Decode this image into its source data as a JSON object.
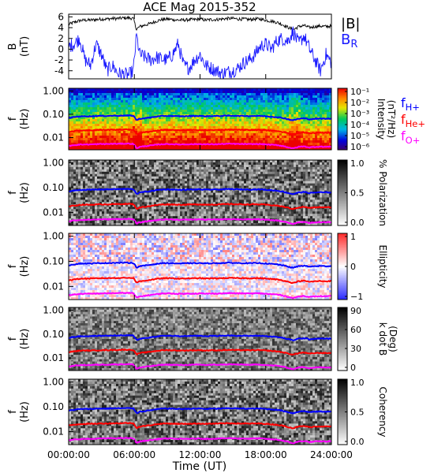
{
  "chart_data": {
    "type": "line",
    "title": "ACE Mag 2015-352",
    "xlabel": "Time (UT)",
    "x_ticks": [
      "00:00:00",
      "06:00:00",
      "12:00:00",
      "18:00:00",
      "24:00:00"
    ],
    "x_range_hours": [
      0,
      24
    ],
    "panels": [
      {
        "kind": "timeseries",
        "ylabel": "B",
        "yunit": "(nT)",
        "ylim": [
          -5.5,
          6.5
        ],
        "y_ticks": [
          6,
          4,
          2,
          0,
          -2,
          -4
        ],
        "series": [
          {
            "name": "|B|",
            "color": "#000000",
            "x": [
              0,
              0.5,
              1,
              1.5,
              2,
              2.5,
              3,
              3.5,
              4,
              4.5,
              5,
              5.5,
              5.9,
              6.2,
              6.5,
              7,
              7.5,
              8,
              8.5,
              9,
              9.5,
              10,
              10.5,
              11,
              11.5,
              12,
              12.5,
              13,
              13.5,
              14,
              14.5,
              15,
              15.5,
              16,
              16.5,
              17,
              17.5,
              18,
              18.5,
              19,
              19.5,
              20,
              20.5,
              21,
              21.5,
              22,
              22.5,
              23,
              23.5,
              24
            ],
            "y": [
              4.6,
              5.0,
              5.3,
              5.4,
              5.4,
              5.5,
              5.6,
              5.6,
              5.7,
              5.7,
              5.8,
              5.8,
              5.7,
              3.7,
              4.2,
              4.5,
              4.8,
              5.2,
              5.5,
              5.6,
              5.5,
              5.4,
              5.4,
              5.5,
              5.5,
              5.6,
              5.4,
              5.5,
              5.5,
              5.6,
              5.7,
              5.7,
              5.6,
              5.6,
              5.5,
              5.6,
              5.6,
              5.4,
              5.2,
              5.0,
              4.6,
              4.1,
              3.6,
              4.2,
              4.4,
              4.0,
              4.2,
              4.3,
              4.2,
              4.3
            ]
          },
          {
            "name": "B",
            "subscript": "R",
            "color": "#1a1aff",
            "x": [
              0,
              0.5,
              1,
              1.5,
              2,
              2.5,
              3,
              3.5,
              4,
              4.5,
              5,
              5.5,
              5.9,
              6.2,
              6.5,
              7,
              7.5,
              8,
              8.5,
              9,
              9.5,
              10,
              10.5,
              11,
              11.5,
              12,
              12.5,
              13,
              13.5,
              14,
              14.5,
              15,
              15.5,
              16,
              16.5,
              17,
              17.5,
              18,
              18.5,
              19,
              19.5,
              20,
              20.5,
              21,
              21.5,
              22,
              22.5,
              23,
              23.5,
              24
            ],
            "y": [
              0.5,
              1.0,
              2.0,
              -2.0,
              -3.0,
              1.0,
              -1.0,
              -4.0,
              -3.0,
              -4.5,
              -4.6,
              -4.8,
              -4.0,
              2.5,
              -1.0,
              -1.5,
              -2.0,
              -1.5,
              -1.8,
              -2.0,
              -1.0,
              1.0,
              -3.0,
              -3.5,
              -2.0,
              -1.0,
              -3.0,
              -3.5,
              -4.0,
              -4.5,
              -4.2,
              -4.0,
              -3.5,
              -2.5,
              -2.0,
              -1.0,
              0.5,
              1.0,
              0.0,
              1.5,
              2.0,
              1.5,
              3.3,
              1.0,
              2.5,
              0.0,
              -2.0,
              -4.0,
              -1.0,
              -2.5
            ]
          }
        ]
      },
      {
        "kind": "spectrogram",
        "ylabel": "f",
        "yunit": "(Hz)",
        "ylim": [
          0.003,
          1.3
        ],
        "y_ticks": [
          "1.00",
          "0.10",
          "0.01"
        ],
        "colorbar": {
          "label": "Intensity",
          "unit": "(nT²/Hz)",
          "scale": "rainbow",
          "ticks": [
            "10⁻¹",
            "10⁻²",
            "10⁻³",
            "10⁻⁴",
            "10⁻⁵",
            "10⁻⁶"
          ]
        },
        "lines_legend": [
          {
            "label": "f",
            "subscript": "H+",
            "color": "#0000ff"
          },
          {
            "label": "f",
            "subscript": "He+",
            "color": "#ff0000"
          },
          {
            "label": "f",
            "subscript": "O+",
            "color": "#ff00ff"
          }
        ]
      },
      {
        "kind": "spectrogram",
        "ylabel": "f",
        "yunit": "(Hz)",
        "ylim": [
          0.003,
          1.3
        ],
        "y_ticks": [
          "1.00",
          "0.10",
          "0.01"
        ],
        "colorbar": {
          "label": "% Polarization",
          "unit": "",
          "scale": "gray",
          "ticks": [
            "1.0",
            "0.5",
            "0.0"
          ]
        }
      },
      {
        "kind": "spectrogram",
        "ylabel": "f",
        "yunit": "(Hz)",
        "ylim": [
          0.003,
          1.3
        ],
        "y_ticks": [
          "1.00",
          "0.10",
          "0.01"
        ],
        "colorbar": {
          "label": "Ellipticity",
          "unit": "",
          "scale": "bwr",
          "ticks": [
            "1",
            "0",
            "−1"
          ]
        }
      },
      {
        "kind": "spectrogram",
        "ylabel": "f",
        "yunit": "(Hz)",
        "ylim": [
          0.003,
          1.3
        ],
        "y_ticks": [
          "1.00",
          "0.10",
          "0.01"
        ],
        "colorbar": {
          "label": "k dot B",
          "unit": "(Deg)",
          "scale": "gray",
          "ticks": [
            "90",
            "60",
            "30",
            "0"
          ]
        }
      },
      {
        "kind": "spectrogram",
        "ylabel": "f",
        "yunit": "(Hz)",
        "ylim": [
          0.003,
          1.3
        ],
        "y_ticks": [
          "1.00",
          "0.10",
          "0.01"
        ],
        "colorbar": {
          "label": "Coherency",
          "unit": "",
          "scale": "gray",
          "ticks": [
            "1.0",
            "0.5",
            "0.0"
          ]
        }
      }
    ],
    "gyrofrequencies": {
      "x": [
        0,
        0.5,
        1,
        1.5,
        2,
        2.5,
        3,
        3.5,
        4,
        4.5,
        5,
        5.5,
        5.9,
        6.2,
        6.5,
        7,
        7.5,
        8,
        8.5,
        9,
        9.5,
        10,
        10.5,
        11,
        11.5,
        12,
        12.5,
        13,
        13.5,
        14,
        14.5,
        15,
        15.5,
        16,
        16.5,
        17,
        17.5,
        18,
        18.5,
        19,
        19.5,
        20,
        20.5,
        21,
        21.5,
        22,
        22.5,
        23,
        23.5,
        24
      ],
      "H+": [
        0.07,
        0.076,
        0.081,
        0.082,
        0.082,
        0.084,
        0.085,
        0.085,
        0.087,
        0.087,
        0.088,
        0.088,
        0.087,
        0.056,
        0.064,
        0.068,
        0.073,
        0.079,
        0.084,
        0.085,
        0.084,
        0.082,
        0.082,
        0.084,
        0.084,
        0.085,
        0.082,
        0.084,
        0.084,
        0.085,
        0.087,
        0.087,
        0.085,
        0.085,
        0.084,
        0.085,
        0.085,
        0.082,
        0.079,
        0.076,
        0.07,
        0.062,
        0.055,
        0.064,
        0.067,
        0.061,
        0.064,
        0.065,
        0.064,
        0.065
      ],
      "He+": [
        0.0175,
        0.019,
        0.0202,
        0.0206,
        0.0206,
        0.021,
        0.0213,
        0.0213,
        0.0217,
        0.0217,
        0.0221,
        0.0221,
        0.0217,
        0.0141,
        0.016,
        0.0171,
        0.0183,
        0.0198,
        0.021,
        0.0213,
        0.021,
        0.0206,
        0.0206,
        0.021,
        0.021,
        0.0213,
        0.0206,
        0.021,
        0.021,
        0.0213,
        0.0217,
        0.0217,
        0.0213,
        0.0213,
        0.021,
        0.0213,
        0.0213,
        0.0206,
        0.0198,
        0.019,
        0.0175,
        0.0156,
        0.0137,
        0.016,
        0.0168,
        0.0152,
        0.016,
        0.0164,
        0.016,
        0.0164
      ],
      "O+": [
        0.0044,
        0.0048,
        0.005,
        0.0051,
        0.0051,
        0.0052,
        0.0053,
        0.0053,
        0.0054,
        0.0054,
        0.0055,
        0.0055,
        0.0054,
        0.0035,
        0.004,
        0.0043,
        0.0046,
        0.0049,
        0.0052,
        0.0053,
        0.0052,
        0.0051,
        0.0051,
        0.0052,
        0.0052,
        0.0053,
        0.0051,
        0.0052,
        0.0052,
        0.0053,
        0.0054,
        0.0054,
        0.0053,
        0.0053,
        0.0052,
        0.0053,
        0.0053,
        0.0051,
        0.0049,
        0.0048,
        0.0044,
        0.0039,
        0.0034,
        0.004,
        0.0042,
        0.0038,
        0.004,
        0.0041,
        0.004,
        0.0041
      ]
    }
  }
}
